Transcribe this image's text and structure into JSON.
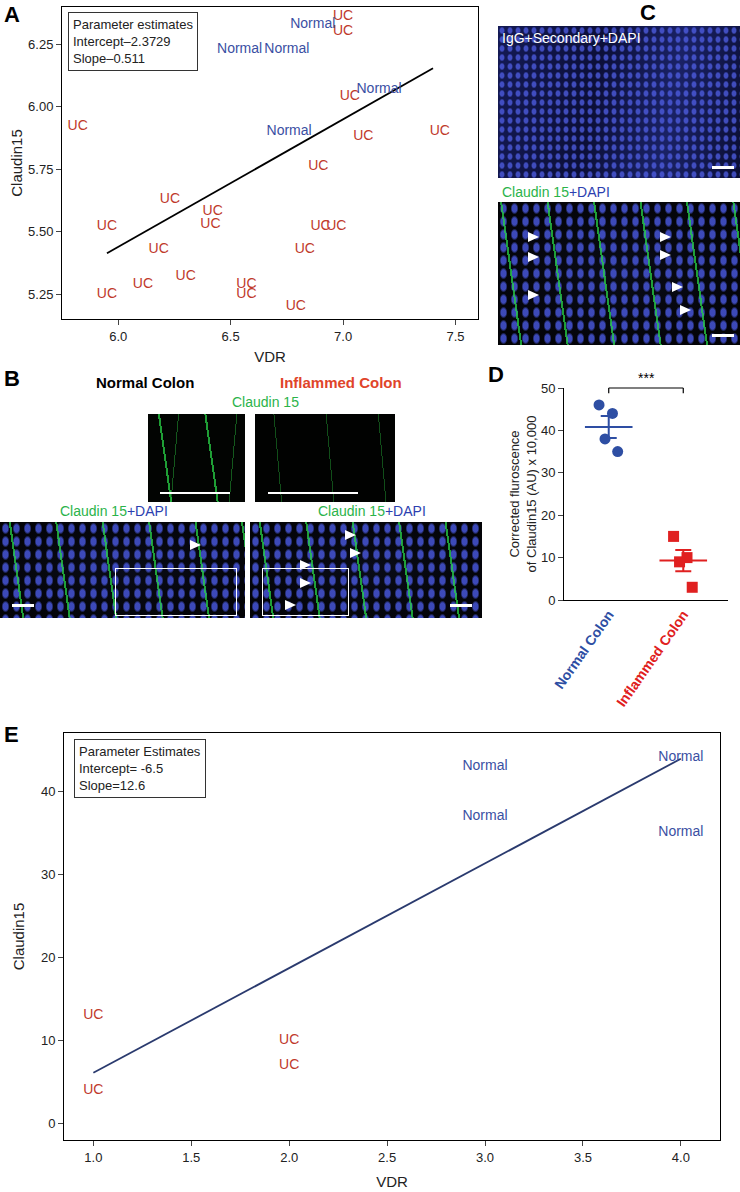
{
  "chart_data": [
    {
      "type": "scatter",
      "label": "A",
      "marker": "text",
      "grid": false,
      "x_label": "VDR",
      "y_label": "Claudin15",
      "annotation": [
        "Parameter estimates",
        "Intercept–2.3729",
        "Slope–0.511"
      ],
      "fit": {
        "intercept": 2.3729,
        "slope": 0.511,
        "x": [
          5.95,
          7.4
        ]
      },
      "xlim": [
        5.75,
        7.6
      ],
      "xticks": [
        {
          "value": 6,
          "label": "6.0"
        },
        {
          "value": 6.5,
          "label": "6.5"
        },
        {
          "value": 7,
          "label": "7.0"
        },
        {
          "value": 7.5,
          "label": "7.5"
        }
      ],
      "ylim": [
        5.15,
        6.4
      ],
      "yticks": [
        {
          "value": 5.25,
          "label": "5.25"
        },
        {
          "value": 5.5,
          "label": "5.50"
        },
        {
          "value": 5.75,
          "label": "5.75"
        },
        {
          "value": 6,
          "label": "6.00"
        },
        {
          "value": 6.25,
          "label": "6.25"
        }
      ],
      "series": [
        {
          "name": "UC",
          "color": "#c0392b",
          "x": [
            7.0,
            7.0,
            7.03,
            5.82,
            7.09,
            7.43,
            6.89,
            6.23,
            6.42,
            6.41,
            5.95,
            6.18,
            6.9,
            6.97,
            6.83,
            6.11,
            5.95,
            6.3,
            6.57,
            6.57,
            6.79
          ],
          "values": [
            6.36,
            6.3,
            6.04,
            5.92,
            5.88,
            5.9,
            5.76,
            5.63,
            5.58,
            5.53,
            5.52,
            5.43,
            5.52,
            5.52,
            5.43,
            5.29,
            5.25,
            5.32,
            5.29,
            5.25,
            5.2
          ]
        },
        {
          "name": "Normal",
          "color": "#3a4fa3",
          "x": [
            6.865,
            6.54,
            6.75,
            7.16,
            6.76
          ],
          "values": [
            6.33,
            6.23,
            6.23,
            6.07,
            5.9
          ]
        }
      ]
    },
    {
      "type": "dot",
      "label": "D",
      "grid": false,
      "y_label": [
        "Corrected fluroscence",
        "of Claudin15 (AU) x 10,000"
      ],
      "annotation": "***",
      "ylim": [
        0,
        50
      ],
      "yticks": [
        0,
        10,
        20,
        30,
        40,
        50
      ],
      "series": [
        {
          "name": "Normal Colon",
          "color": "#2e4ea3",
          "marker": "circle",
          "values": [
            46,
            44,
            38,
            35
          ],
          "mean": 40.8,
          "error": 2.6
        },
        {
          "name": "Inflammed Colon",
          "color": "#e02020",
          "marker": "square",
          "values": [
            15,
            10,
            9,
            3
          ],
          "mean": 9.3,
          "error": 2.5
        }
      ]
    },
    {
      "type": "scatter",
      "label": "E",
      "marker": "text",
      "grid": false,
      "x_label": "VDR",
      "y_label": "Claudin15",
      "annotation": [
        "Parameter Estimates",
        "Intercept= -6.5",
        "Slope=12.6"
      ],
      "fit": {
        "intercept": -6.5,
        "slope": 12.6,
        "x": [
          1,
          4
        ]
      },
      "xlim": [
        0.85,
        4.2
      ],
      "xticks": [
        {
          "value": 1,
          "label": "1.0"
        },
        {
          "value": 1.5,
          "label": "1.5"
        },
        {
          "value": 2,
          "label": "2.0"
        },
        {
          "value": 2.5,
          "label": "2.5"
        },
        {
          "value": 3,
          "label": "3.0"
        },
        {
          "value": 3.5,
          "label": "3.5"
        },
        {
          "value": 4,
          "label": "4.0"
        }
      ],
      "ylim": [
        -2,
        47
      ],
      "yticks": [
        0,
        10,
        20,
        30,
        40
      ],
      "series": [
        {
          "name": "UC",
          "color": "#c0392b",
          "x": [
            1,
            1,
            2,
            2
          ],
          "values": [
            13,
            4,
            10,
            7
          ]
        },
        {
          "name": "Normal",
          "color": "#3a4fa3",
          "x": [
            3,
            3,
            4,
            4
          ],
          "values": [
            43,
            37,
            44,
            35
          ]
        }
      ]
    }
  ],
  "images": {
    "B": {
      "label": "B",
      "column_titles": [
        "Normal Colon",
        "Inflammed Colon"
      ],
      "stain_top": "Claudin 15",
      "stain_bottom": "Claudin 15+DAPI"
    },
    "C": {
      "label": "C",
      "top": "IgG+Secondary+DAPI",
      "bottom": "Claudin 15+DAPI"
    }
  }
}
